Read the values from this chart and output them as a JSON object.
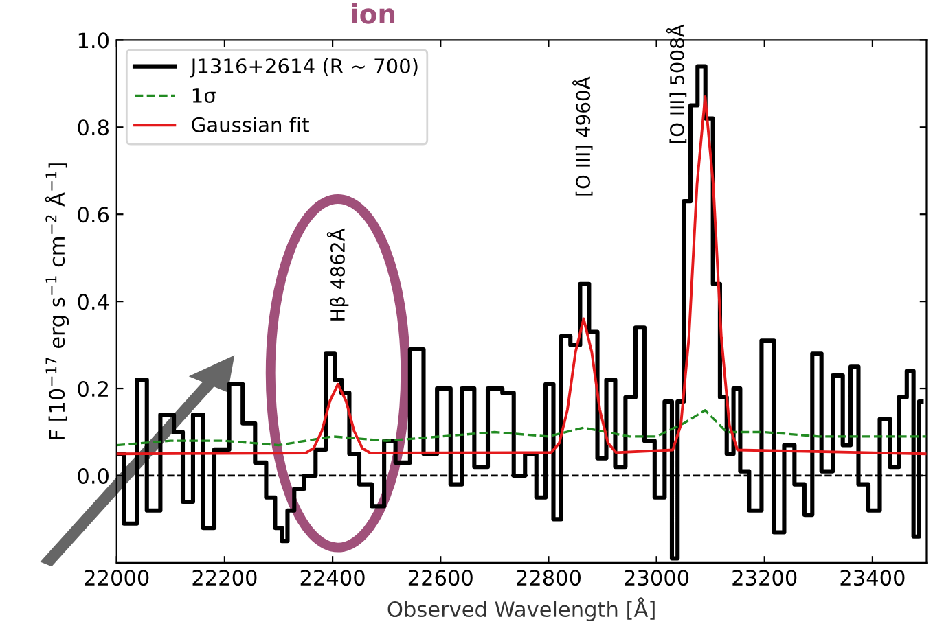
{
  "chart_data": {
    "type": "step",
    "xlabel": "Observed Wavelength [Å]",
    "ylabel": "F [10$^{−17}$ erg s$^{−1}$ cm$^{−2}$ Å$^{−1}$]",
    "xlim": [
      22000,
      23500
    ],
    "ylim": [
      -0.2,
      1.0
    ],
    "xticks": [
      22000,
      22200,
      22400,
      22600,
      22800,
      23000,
      23200,
      23400
    ],
    "yticks": [
      {
        "value": 0.0,
        "label": "0.0"
      },
      0.2,
      0.4,
      0.6,
      0.8,
      {
        "value": 1.0,
        "label": "1.0"
      }
    ],
    "legend": "top left",
    "grid": false,
    "ref_lines": [
      {
        "axis": "y",
        "value": 0,
        "label": null,
        "color": "#000000",
        "line_style": "dashed"
      }
    ],
    "annotations": [
      "ion",
      "Hβ 4862Å",
      "[O III] 4960Å",
      "[O III] 5008Å"
    ],
    "series": [
      {
        "name": "J1316+2614 (R ∼ 700)",
        "color": "#000000",
        "line_style": "solid",
        "x": [
          22000,
          22027,
          22048,
          22064,
          22098,
          22114,
          22131,
          22152,
          22168,
          22194,
          22223,
          22244,
          22269,
          22285,
          22302,
          22310,
          22323,
          22335,
          22360,
          22377,
          22398,
          22410,
          22423,
          22439,
          22460,
          22485,
          22506,
          22527,
          22560,
          22577,
          22610,
          22627,
          22652,
          22673,
          22702,
          22727,
          22744,
          22769,
          22786,
          22803,
          22815,
          22832,
          22849,
          22868,
          22882,
          22899,
          22915,
          22932,
          22953,
          22969,
          22986,
          23007,
          23023,
          23034,
          23044,
          23057,
          23069,
          23083,
          23098,
          23111,
          23124,
          23136,
          23149,
          23161,
          23182,
          23207,
          23228,
          23245,
          23266,
          23282,
          23295,
          23316,
          23337,
          23353,
          23366,
          23382,
          23403,
          23424,
          23441,
          23457,
          23470,
          23482,
          23491
        ],
        "values": [
          0.05,
          -0.11,
          0.22,
          -0.08,
          0.14,
          0.1,
          -0.06,
          0.14,
          -0.12,
          0.06,
          0.21,
          0.12,
          0.03,
          -0.05,
          -0.12,
          -0.15,
          -0.08,
          -0.03,
          0.0,
          0.06,
          0.28,
          0.22,
          0.19,
          0.05,
          -0.02,
          -0.07,
          0.08,
          0.03,
          0.29,
          0.05,
          0.2,
          -0.02,
          0.2,
          0.02,
          0.2,
          0.19,
          0.0,
          0.05,
          -0.05,
          0.21,
          -0.1,
          0.32,
          0.3,
          0.44,
          0.33,
          0.04,
          0.22,
          0.02,
          0.18,
          0.34,
          0.08,
          -0.05,
          0.17,
          -0.19,
          0.17,
          0.63,
          0.85,
          0.94,
          0.82,
          0.44,
          0.18,
          0.05,
          0.2,
          0.01,
          -0.08,
          0.31,
          -0.13,
          0.07,
          -0.02,
          -0.09,
          0.28,
          0.01,
          0.23,
          0.07,
          0.25,
          -0.02,
          -0.08,
          0.13,
          0.02,
          0.18,
          0.24,
          -0.14,
          0.17
        ]
      },
      {
        "name": "1σ",
        "type": "line",
        "color": "#228b22",
        "line_style": "dashed",
        "x": [
          22000,
          22100,
          22200,
          22300,
          22400,
          22500,
          22600,
          22700,
          22800,
          22865,
          22950,
          23000,
          23050,
          23090,
          23130,
          23200,
          23300,
          23400,
          23500
        ],
        "values": [
          0.07,
          0.08,
          0.08,
          0.07,
          0.09,
          0.08,
          0.09,
          0.1,
          0.09,
          0.11,
          0.09,
          0.09,
          0.12,
          0.15,
          0.1,
          0.1,
          0.09,
          0.09,
          0.09
        ]
      },
      {
        "name": "Gaussian fit",
        "type": "line",
        "color": "#e41a1c",
        "line_style": "solid",
        "x": [
          22000,
          22350,
          22365,
          22380,
          22395,
          22410,
          22425,
          22440,
          22455,
          22470,
          22805,
          22820,
          22835,
          22850,
          22865,
          22880,
          22895,
          22910,
          22925,
          23030,
          23045,
          23060,
          23075,
          23090,
          23105,
          23120,
          23135,
          23150,
          23500
        ],
        "values": [
          0.05,
          0.052,
          0.063,
          0.102,
          0.171,
          0.21,
          0.171,
          0.102,
          0.063,
          0.052,
          0.053,
          0.075,
          0.151,
          0.284,
          0.36,
          0.284,
          0.151,
          0.075,
          0.053,
          0.059,
          0.116,
          0.317,
          0.669,
          0.87,
          0.669,
          0.317,
          0.116,
          0.059,
          0.05
        ]
      }
    ]
  }
}
